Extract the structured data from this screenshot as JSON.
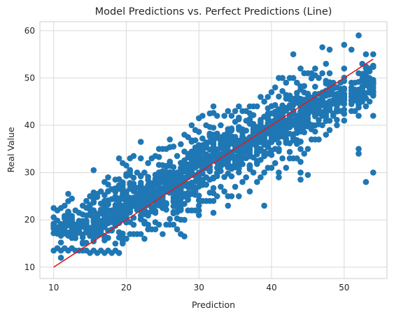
{
  "chart_data": {
    "type": "scatter",
    "title": "Model Predictions vs. Perfect Predictions (Line)",
    "xlabel": "Prediction",
    "ylabel": "Real Value",
    "xlim": [
      8.1,
      55.9
    ],
    "ylim": [
      7.6,
      61.9
    ],
    "xticks": [
      10,
      20,
      30,
      40,
      50
    ],
    "yticks": [
      10,
      20,
      30,
      40,
      50,
      60
    ],
    "grid": true,
    "point_color": "#1f77b4",
    "line_color": "#e31a1c",
    "grid_color": "#d9d9d9",
    "perfect_line": {
      "x": [
        10,
        54
      ],
      "y": [
        10,
        54
      ]
    },
    "points": {
      "x_values": [
        10,
        10.5,
        11,
        11.5,
        12,
        12.5,
        13,
        13.5,
        14,
        14.5,
        15,
        15.5,
        16,
        16.5,
        17,
        17.5,
        18,
        18.5,
        19,
        19.5,
        20,
        20.5,
        21,
        21.5,
        22,
        22.5,
        23,
        23.5,
        24,
        24.5,
        25,
        25.5,
        26,
        26.5,
        27,
        27.5,
        28,
        28.5,
        29,
        29.5,
        30,
        30.5,
        31,
        31.5,
        32,
        32.5,
        33,
        33.5,
        34,
        34.5,
        35,
        35.5,
        36,
        36.5,
        37,
        37.5,
        38,
        38.5,
        39,
        39.5,
        40,
        40.5,
        41,
        41.5,
        42,
        42.5,
        43,
        43.5,
        44,
        44.5,
        45,
        45.5,
        46,
        46.5,
        47,
        47.5,
        48,
        48.5,
        49,
        49.5,
        50,
        51,
        51.5,
        52,
        52.5,
        53,
        53.5,
        54
      ],
      "y_ranges": [
        [
          13.5,
          22.5
        ],
        [
          14,
          22
        ],
        [
          13.5,
          22.5
        ],
        [
          14,
          23
        ],
        [
          13.5,
          25.5
        ],
        [
          14,
          24.5
        ],
        [
          13.5,
          22
        ],
        [
          13.5,
          21.5
        ],
        [
          13.5,
          23
        ],
        [
          13.5,
          24
        ],
        [
          13,
          25
        ],
        [
          13.5,
          30.5
        ],
        [
          13,
          25.5
        ],
        [
          13.5,
          26
        ],
        [
          13,
          28
        ],
        [
          13.5,
          29
        ],
        [
          13,
          26.5
        ],
        [
          13.5,
          28.5
        ],
        [
          13,
          33
        ],
        [
          15,
          32
        ],
        [
          16,
          31.5
        ],
        [
          17,
          33
        ],
        [
          17,
          33.5
        ],
        [
          17,
          30
        ],
        [
          17,
          33
        ],
        [
          16,
          30
        ],
        [
          18,
          32
        ],
        [
          18,
          33
        ],
        [
          18,
          33.5
        ],
        [
          19,
          35
        ],
        [
          17,
          35
        ],
        [
          19,
          35
        ],
        [
          19,
          37
        ],
        [
          19,
          35.5
        ],
        [
          18,
          33.5
        ],
        [
          17,
          36
        ],
        [
          20,
          38
        ],
        [
          22,
          37.5
        ],
        [
          22,
          40
        ],
        [
          22,
          39
        ],
        [
          21,
          41.5
        ],
        [
          24,
          42
        ],
        [
          24,
          40
        ],
        [
          24,
          42.5
        ],
        [
          24,
          44
        ],
        [
          25,
          42
        ],
        [
          27,
          40
        ],
        [
          26,
          42
        ],
        [
          25,
          43
        ],
        [
          25,
          42
        ],
        [
          27,
          43
        ],
        [
          25,
          44
        ],
        [
          28,
          43
        ],
        [
          29,
          43
        ],
        [
          26,
          44
        ],
        [
          30,
          44
        ],
        [
          28,
          44
        ],
        [
          29,
          46
        ],
        [
          30,
          45
        ],
        [
          31,
          46
        ],
        [
          31,
          47
        ],
        [
          32,
          48
        ],
        [
          30,
          50
        ],
        [
          33,
          50
        ],
        [
          31,
          49
        ],
        [
          33,
          50
        ],
        [
          33,
          50
        ],
        [
          33,
          49
        ],
        [
          30,
          52
        ],
        [
          34,
          51
        ],
        [
          35,
          51
        ],
        [
          37,
          51
        ],
        [
          37,
          52
        ],
        [
          37,
          50
        ],
        [
          40,
          51
        ],
        [
          38,
          53
        ],
        [
          39,
          51
        ],
        [
          42,
          49
        ],
        [
          40,
          48
        ],
        [
          43,
          49
        ],
        [
          41,
          52
        ],
        [
          43,
          49
        ],
        [
          43,
          49
        ],
        [
          42,
          51
        ],
        [
          45,
          53
        ],
        [
          44,
          55
        ],
        [
          45,
          52
        ],
        [
          42,
          55
        ]
      ],
      "outliers": [
        [
          11,
          12
        ],
        [
          19,
          13
        ],
        [
          22,
          36.5
        ],
        [
          28,
          16.5
        ],
        [
          30,
          22
        ],
        [
          32,
          21.5
        ],
        [
          34,
          23
        ],
        [
          39,
          23
        ],
        [
          41,
          29
        ],
        [
          44,
          28.5
        ],
        [
          45,
          29.5
        ],
        [
          43,
          55
        ],
        [
          47,
          56.5
        ],
        [
          48,
          56
        ],
        [
          52,
          59
        ],
        [
          52,
          35
        ],
        [
          52,
          34
        ],
        [
          53,
          28
        ],
        [
          54,
          30
        ],
        [
          50,
          57
        ],
        [
          49,
          48
        ],
        [
          51,
          56
        ]
      ]
    }
  }
}
